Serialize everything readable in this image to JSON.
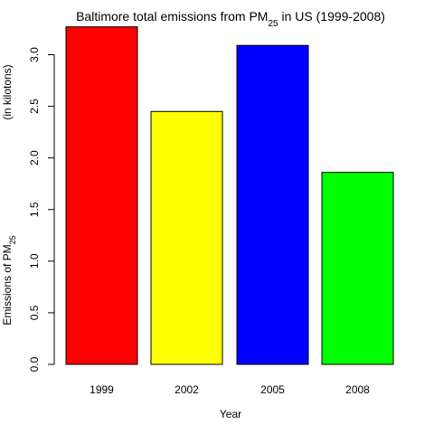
{
  "chart_data": {
    "type": "bar",
    "title": {
      "before": "Baltimore total emissions from PM",
      "sub": "25",
      "after": " in US (1999-2008)"
    },
    "xlabel": "Year",
    "ylabel": {
      "line1": "(in kilotons)",
      "line2_before": "Emissions of PM",
      "line2_sub": "25"
    },
    "categories": [
      "1999",
      "2002",
      "2005",
      "2008"
    ],
    "values": [
      3.27,
      2.45,
      3.09,
      1.86
    ],
    "colors": [
      "#FF0000",
      "#FFFF00",
      "#0000FF",
      "#00FF00"
    ],
    "ylim": [
      0,
      3.3
    ],
    "yticks": [
      0.0,
      0.5,
      1.0,
      1.5,
      2.0,
      2.5,
      3.0
    ],
    "ytick_labels": [
      "0.0",
      "0.5",
      "1.0",
      "1.5",
      "2.0",
      "2.5",
      "3.0"
    ],
    "grid": false,
    "legend": "none"
  }
}
